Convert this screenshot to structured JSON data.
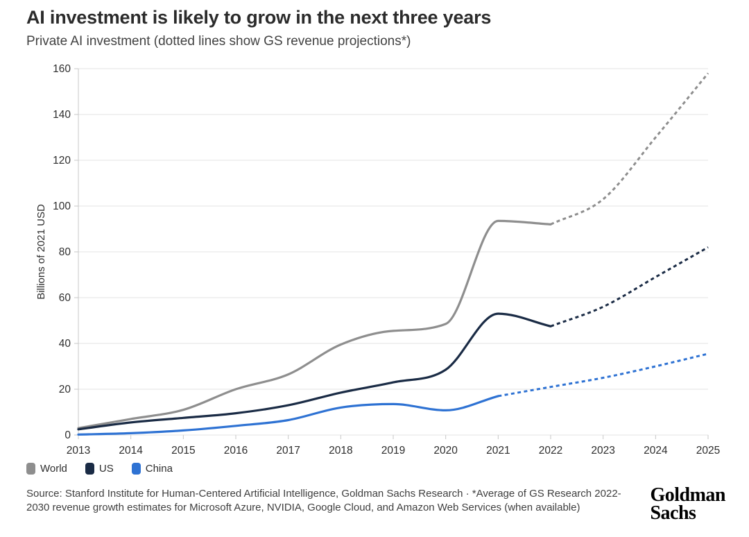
{
  "header": {
    "title": "AI investment is likely to grow in the next three years",
    "subtitle": "Private AI investment (dotted lines show GS revenue projections*)"
  },
  "chart_data": {
    "type": "line",
    "title": "AI investment is likely to grow in the next three years",
    "subtitle": "Private AI investment (dotted lines show GS revenue projections*)",
    "xlabel": "",
    "ylabel": "Billions of 2021 USD",
    "ylim": [
      0,
      160
    ],
    "ytick_step": 20,
    "yticks": [
      0,
      20,
      40,
      60,
      80,
      100,
      120,
      140,
      160
    ],
    "grid": "horizontal",
    "legend_position": "bottom-left",
    "x": [
      2013,
      2014,
      2015,
      2016,
      2017,
      2018,
      2019,
      2020,
      2021,
      2022,
      2023,
      2024,
      2025
    ],
    "projection_note": "dotted segments are GS revenue projections",
    "series": [
      {
        "name": "World",
        "color": "#8e8e8e",
        "solid_until": 2022,
        "values": [
          3,
          7,
          11,
          20,
          26.5,
          39.5,
          45.5,
          48.5,
          93.5,
          92,
          103,
          130,
          158
        ]
      },
      {
        "name": "US",
        "color": "#1a2b45",
        "solid_until": 2022,
        "values": [
          2.5,
          5.5,
          7.5,
          9.5,
          13,
          18.5,
          23,
          28.5,
          53,
          47.5,
          56,
          69,
          82
        ]
      },
      {
        "name": "China",
        "color": "#2e72d3",
        "solid_until": 2021,
        "values": [
          0.2,
          0.8,
          2,
          4,
          6.5,
          12,
          13.5,
          10.8,
          17,
          21,
          25,
          30,
          35.5
        ]
      }
    ],
    "style": {
      "grid_color": "#e3e3e3",
      "axis_color": "#c7c7c7",
      "tick_label_color": "#2d2d2d",
      "axis_title_color": "#2d2d2d"
    }
  },
  "legend": {
    "items": [
      {
        "label": "World",
        "color": "#8e8e8e"
      },
      {
        "label": "US",
        "color": "#1a2b45"
      },
      {
        "label": "China",
        "color": "#2e72d3"
      }
    ]
  },
  "footer": {
    "source_text": "Source: Stanford Institute for Human-Centered Artificial Intelligence, Goldman Sachs Research · *Average of GS Research 2022-2030 revenue growth estimates for Microsoft Azure, NVIDIA, Google Cloud, and Amazon Web Services (when available)",
    "logo_line1": "Goldman",
    "logo_line2": "Sachs"
  }
}
